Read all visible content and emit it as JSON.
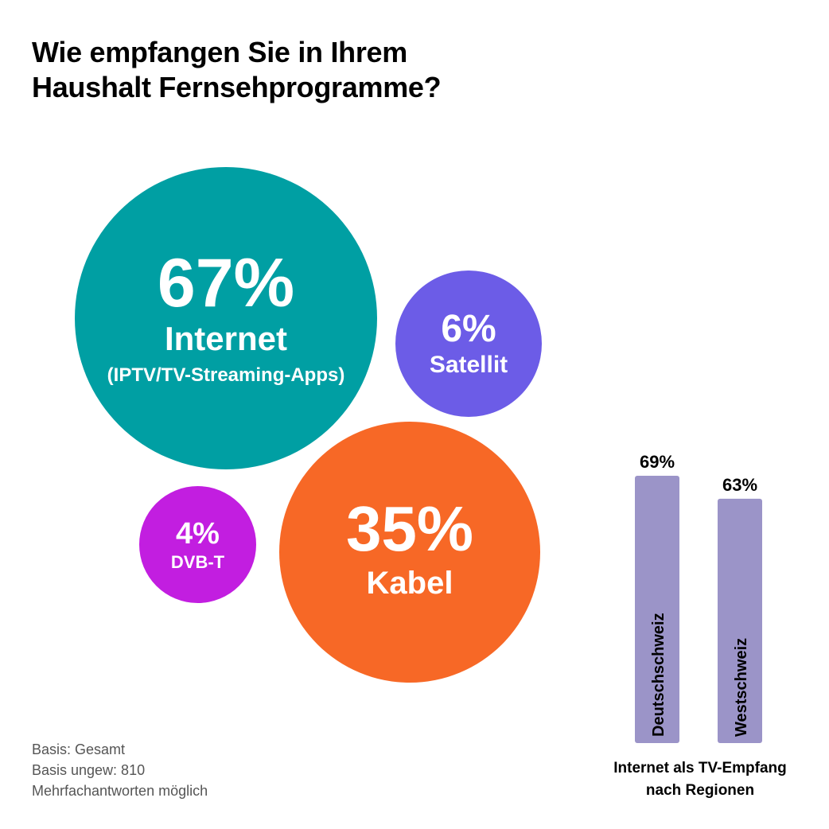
{
  "title": {
    "line1": "Wie empfangen Sie in Ihrem",
    "line2": "Haushalt Fernsehprogramme?"
  },
  "bubbles": {
    "internet": {
      "value": "67%",
      "label": "Internet",
      "sublabel": "(IPTV/TV-Streaming-Apps)",
      "color": "#009fa3"
    },
    "satellit": {
      "value": "6%",
      "label": "Satellit",
      "color": "#6c5ce7"
    },
    "kabel": {
      "value": "35%",
      "label": "Kabel",
      "color": "#f76826"
    },
    "dvbt": {
      "value": "4%",
      "label": "DVB-T",
      "color": "#c21ee0"
    }
  },
  "footnote": {
    "line1": "Basis: Gesamt",
    "line2": "Basis ungew: 810",
    "line3": "Mehrfachantworten möglich"
  },
  "bar_caption": {
    "line1": "Internet als TV-Empfang",
    "line2": "nach Regionen"
  },
  "chart_data": [
    {
      "type": "bubble",
      "title": "Wie empfangen Sie in Ihrem Haushalt Fernsehprogramme?",
      "categories": [
        "Internet (IPTV/TV-Streaming-Apps)",
        "Kabel",
        "Satellit",
        "DVB-T"
      ],
      "values": [
        67,
        35,
        6,
        4
      ],
      "unit": "%",
      "colors": [
        "#009fa3",
        "#f76826",
        "#6c5ce7",
        "#c21ee0"
      ]
    },
    {
      "type": "bar",
      "title": "Internet als TV-Empfang nach Regionen",
      "categories": [
        "Deutschschweiz",
        "Westschweiz"
      ],
      "values": [
        69,
        63
      ],
      "value_labels": [
        "69%",
        "63%"
      ],
      "unit": "%",
      "color": "#9b94c8",
      "ylim": [
        0,
        69
      ],
      "grid": false,
      "legend": "none"
    }
  ]
}
